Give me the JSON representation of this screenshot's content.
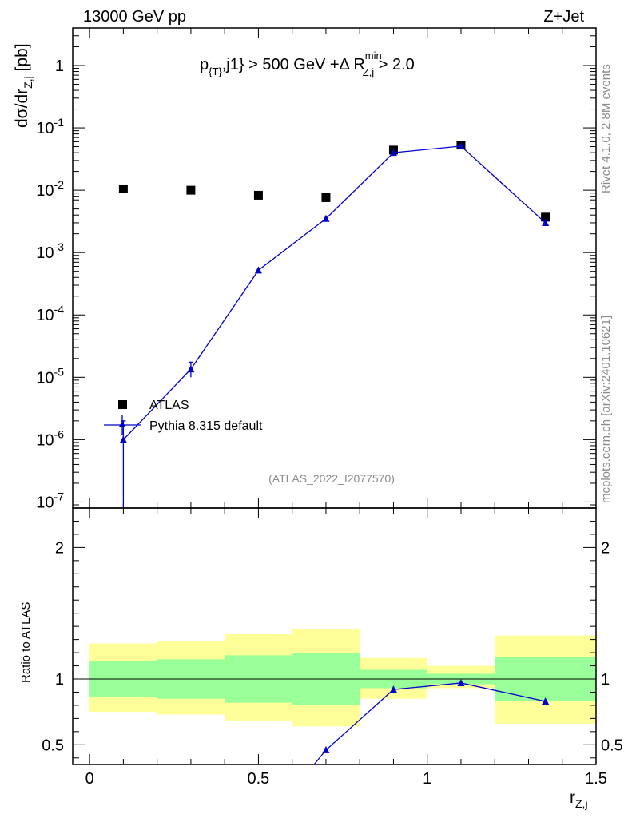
{
  "header": {
    "left": "13000 GeV pp",
    "right": "Z+Jet"
  },
  "cut_label": {
    "part1": "p",
    "sub1": "{T}",
    "part2": ",j1} > 500 GeV +Δ R",
    "sup2": "min",
    "sub2": "Z,j",
    "part3": " > 2.0"
  },
  "side_labels": {
    "rivet": "Rivet 4.1.0,  2.8M events",
    "mcplots": "mcplots.cern.ch [arXiv:2401.10621]"
  },
  "analysis_tag": "(ATLAS_2022_I2077570)",
  "y_label": {
    "main": "dσ/dr",
    "sub": "Z,j",
    "unit": " [pb]"
  },
  "x_label": {
    "main": "r",
    "sub": "Z,j"
  },
  "ratio_ylabel": "Ratio to ATLAS",
  "legend": [
    {
      "name": "ATLAS",
      "marker": "square",
      "color": "#000000"
    },
    {
      "name": "Pythia 8.315 default",
      "marker": "triangle",
      "color": "#0000cc"
    }
  ],
  "colors": {
    "data": "#000000",
    "mc": "#0000cc",
    "band_inner": "#99ff99",
    "band_outer": "#ffff99",
    "grey_text": "#8c8c8c"
  },
  "chart_data": [
    {
      "type": "scatter",
      "panel": "main",
      "yscale": "log",
      "xlim": [
        -0.05,
        1.5
      ],
      "ylim": [
        8e-08,
        4
      ],
      "x_ticks": [
        0,
        0.5,
        1,
        1.5
      ],
      "y_ticks": [
        {
          "mant": "10",
          "exp": "-7"
        },
        {
          "mant": "10",
          "exp": "-6"
        },
        {
          "mant": "10",
          "exp": "-5"
        },
        {
          "mant": "10",
          "exp": "-4"
        },
        {
          "mant": "10",
          "exp": "-3"
        },
        {
          "mant": "10",
          "exp": "-2"
        },
        {
          "mant": "10",
          "exp": "-1"
        },
        {
          "mant": "1",
          "exp": ""
        }
      ],
      "series": [
        {
          "name": "ATLAS",
          "x": [
            0.1,
            0.3,
            0.5,
            0.7,
            0.9,
            1.1,
            1.35
          ],
          "values": [
            0.0105,
            0.01,
            0.0083,
            0.0076,
            0.044,
            0.053,
            0.0037
          ]
        },
        {
          "name": "Pythia 8.315 default",
          "x": [
            0.1,
            0.3,
            0.5,
            0.7,
            0.9,
            1.1,
            1.35
          ],
          "values": [
            1e-06,
            1.35e-05,
            0.00052,
            0.0035,
            0.04,
            0.051,
            0.003
          ],
          "err_lo": [
            9.99e-07,
            3.5e-06,
            0,
            0,
            0,
            0,
            0
          ],
          "err_hi": [
            1e-06,
            4e-06,
            0,
            0,
            0,
            0,
            0
          ]
        }
      ]
    },
    {
      "type": "line",
      "panel": "ratio",
      "xlim": [
        -0.05,
        1.5
      ],
      "ylim": [
        0.35,
        2.3
      ],
      "x_ticks": [
        0,
        0.5,
        1,
        1.5
      ],
      "y_ticks": [
        0.5,
        1,
        2
      ],
      "bin_edges": [
        0,
        0.2,
        0.4,
        0.6,
        0.8,
        1.0,
        1.2,
        1.5
      ],
      "band_inner": [
        [
          0.86,
          1.14
        ],
        [
          0.85,
          1.15
        ],
        [
          0.82,
          1.18
        ],
        [
          0.8,
          1.2
        ],
        [
          0.93,
          1.07
        ],
        [
          0.96,
          1.04
        ],
        [
          0.83,
          1.17
        ]
      ],
      "band_outer": [
        [
          0.75,
          1.27
        ],
        [
          0.73,
          1.29
        ],
        [
          0.68,
          1.34
        ],
        [
          0.64,
          1.38
        ],
        [
          0.85,
          1.16
        ],
        [
          0.93,
          1.1
        ],
        [
          0.66,
          1.33
        ]
      ],
      "series": [
        {
          "name": "Pythia 8.315 default",
          "x": [
            0.665,
            0.7,
            0.9,
            1.1,
            1.35
          ],
          "values": [
            0.35,
            0.46,
            0.92,
            0.97,
            0.83
          ],
          "markers": [
            false,
            true,
            true,
            true,
            true
          ]
        }
      ]
    }
  ]
}
